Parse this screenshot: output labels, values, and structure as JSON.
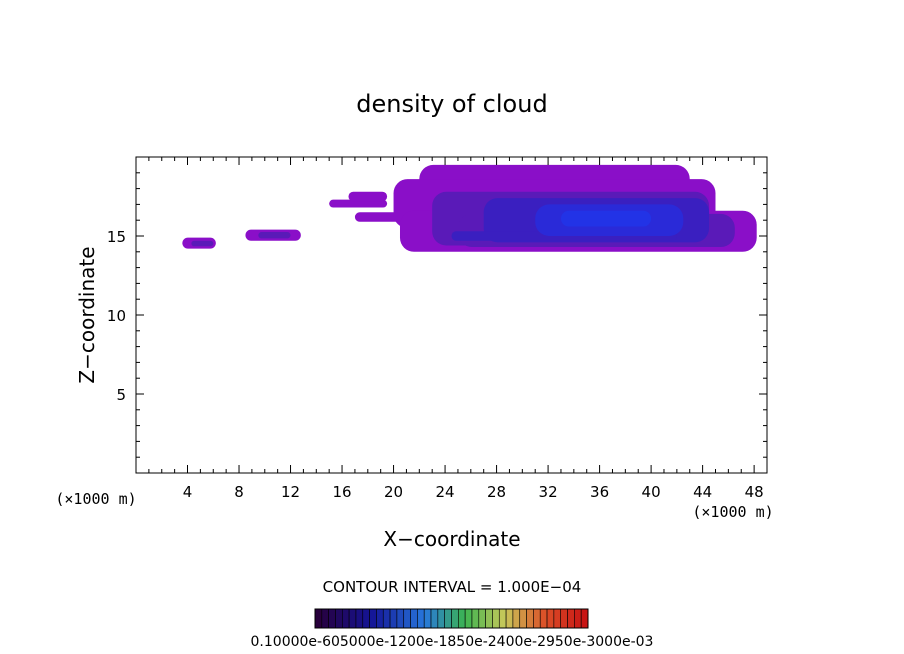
{
  "chart_data": {
    "type": "contour",
    "title": "density of cloud",
    "xlabel": "X−coordinate",
    "ylabel": "Z−coordinate",
    "x_unit_left": "(×1000 m)",
    "x_unit_right": "(×1000 m)",
    "xlim": [
      0,
      49
    ],
    "ylim": [
      0,
      20
    ],
    "x_ticks": [
      4,
      8,
      12,
      16,
      20,
      24,
      28,
      32,
      36,
      40,
      44,
      48
    ],
    "y_ticks": [
      5,
      10,
      15
    ],
    "contour_interval_label": "CONTOUR INTERVAL = 1.000E−04",
    "colorbar_labels": "0.10000e-605000e-1200e-1850e-2400e-2950e-3000e-03",
    "colors": {
      "outer": "#8a0fc8",
      "mid": "#5a1ab8",
      "inner": "#3a1fc0",
      "core": "#2a2ad8",
      "axis": "#000000"
    },
    "regions": [
      {
        "name": "small-patch-1",
        "x": [
          3.6,
          6.2
        ],
        "z": [
          14.2,
          14.9
        ]
      },
      {
        "name": "small-patch-2",
        "x": [
          8.5,
          12.8
        ],
        "z": [
          14.7,
          15.4
        ]
      },
      {
        "name": "strand-upper",
        "x": [
          15.0,
          19.5
        ],
        "z": [
          16.8,
          17.8
        ]
      },
      {
        "name": "main-cloud",
        "x": [
          20.0,
          48.2
        ],
        "z": [
          14.0,
          19.5
        ]
      }
    ]
  }
}
